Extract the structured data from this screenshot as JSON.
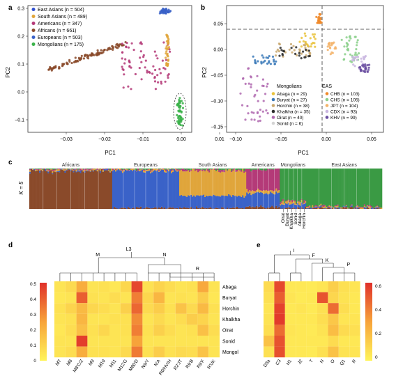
{
  "panels": {
    "a": {
      "label": "a",
      "xlabel": "PC1",
      "ylabel": "PC2",
      "xticks": [
        "−0.03",
        "−0.02",
        "−0.01",
        "0.00",
        "0.01"
      ],
      "yticks": [
        "0.3",
        "0.2",
        "0.1",
        "0.0",
        "−0.1"
      ],
      "legend": [
        {
          "name": "East Asians (n = 504)",
          "color": "#2f4fd0"
        },
        {
          "name": "South Asians (n = 489)",
          "color": "#e0a53a"
        },
        {
          "name": "Americans (n = 347)",
          "color": "#b43a78"
        },
        {
          "name": "Africans (n = 661)",
          "color": "#8a4a2a"
        },
        {
          "name": "Europeans (n = 503)",
          "color": "#3a62c8"
        },
        {
          "name": "Mongolians (n = 175)",
          "color": "#3bb24a"
        }
      ]
    },
    "b": {
      "label": "b",
      "xlabel": "PC1",
      "ylabel": "PC2",
      "xticks": [
        "−0.10",
        "−0.05",
        "0.00",
        "0.05"
      ],
      "yticks": [
        "0.05",
        "0.00",
        "−0.05",
        "−0.10",
        "−0.15"
      ],
      "group_left": "Mongolians",
      "group_right": "EAS",
      "legend_left": [
        {
          "name": "Abaga (n = 29)",
          "color": "#e9c23a"
        },
        {
          "name": "Buryat (n = 27)",
          "color": "#3a79b8"
        },
        {
          "name": "Horchin (n = 38)",
          "color": "#c9a86e"
        },
        {
          "name": "Khalkha (n = 35)",
          "color": "#2b2b2b"
        },
        {
          "name": "Oirat (n = 40)",
          "color": "#b06ab0"
        },
        {
          "name": "Sonid (n = 6)",
          "color": "#d4d4d4"
        }
      ],
      "legend_right": [
        {
          "name": "CHB (n = 103)",
          "color": "#f08a2a"
        },
        {
          "name": "CHS (n = 105)",
          "color": "#8bd08b"
        },
        {
          "name": "JPT (n = 104)",
          "color": "#f3b36a"
        },
        {
          "name": "CDX (n = 93)",
          "color": "#c9b6e0"
        },
        {
          "name": "KHV (n = 99)",
          "color": "#6a4ea0"
        }
      ]
    },
    "c": {
      "label": "c",
      "k_label": "K = 5",
      "groups": [
        "Africans",
        "Europeans",
        "South Asians",
        "Americans",
        "Mongolians",
        "East Asians"
      ],
      "subgroups": [
        "Oirat",
        "Buryat",
        "Khalkha",
        "Sonid",
        "Abaga",
        "Horchin"
      ]
    },
    "d": {
      "label": "d",
      "clade_labels": [
        "M",
        "L3",
        "N",
        "R"
      ],
      "columns": [
        "M7",
        "M8",
        "M8'C/Z",
        "M9",
        "M10",
        "M11",
        "M12'G",
        "M80'D",
        "N9/Y",
        "N'A",
        "R0/HV/H",
        "R2'JT",
        "R9'B",
        "R9'F",
        "R'UK"
      ],
      "rows": [
        "Abaga",
        "Buryat",
        "Horchin",
        "Khalkha",
        "Oirat",
        "Sonid",
        "Mongol"
      ],
      "scale_ticks": [
        "0.5",
        "0.4",
        "0.3",
        "0.2",
        "0.1",
        "0"
      ],
      "vmax": 0.5,
      "values": [
        [
          0.05,
          0.08,
          0.22,
          0.05,
          0.06,
          0.04,
          0.09,
          0.45,
          0.06,
          0.1,
          0.07,
          0.05,
          0.06,
          0.23,
          0.05
        ],
        [
          0.04,
          0.05,
          0.4,
          0.06,
          0.05,
          0.07,
          0.05,
          0.33,
          0.09,
          0.19,
          0.05,
          0.06,
          0.05,
          0.12,
          0.04
        ],
        [
          0.06,
          0.1,
          0.18,
          0.09,
          0.07,
          0.05,
          0.11,
          0.38,
          0.08,
          0.12,
          0.06,
          0.15,
          0.08,
          0.18,
          0.06
        ],
        [
          0.05,
          0.06,
          0.19,
          0.05,
          0.05,
          0.06,
          0.06,
          0.3,
          0.05,
          0.08,
          0.05,
          0.07,
          0.12,
          0.1,
          0.05
        ],
        [
          0.04,
          0.07,
          0.16,
          0.06,
          0.09,
          0.05,
          0.06,
          0.33,
          0.06,
          0.11,
          0.07,
          0.05,
          0.06,
          0.16,
          0.07
        ],
        [
          0.05,
          0.05,
          0.47,
          0.05,
          0.05,
          0.05,
          0.05,
          0.25,
          0.05,
          0.05,
          0.05,
          0.05,
          0.05,
          0.05,
          0.05
        ],
        [
          0.05,
          0.07,
          0.22,
          0.06,
          0.06,
          0.05,
          0.08,
          0.34,
          0.06,
          0.12,
          0.06,
          0.08,
          0.07,
          0.15,
          0.05
        ]
      ]
    },
    "e": {
      "label": "e",
      "clade_labels": [
        "I",
        "F",
        "K",
        "P"
      ],
      "columns": [
        "D3a",
        "C3",
        "H1",
        "J2",
        "T",
        "N",
        "O",
        "Q1",
        "R"
      ],
      "scale_ticks": [
        "0.6",
        "0.4",
        "0.2",
        "0"
      ],
      "vmax": 0.65,
      "values": [
        [
          0.1,
          0.58,
          0.05,
          0.05,
          0.04,
          0.06,
          0.15,
          0.08,
          0.06
        ],
        [
          0.08,
          0.52,
          0.06,
          0.04,
          0.05,
          0.55,
          0.12,
          0.07,
          0.05
        ],
        [
          0.06,
          0.6,
          0.05,
          0.06,
          0.04,
          0.08,
          0.48,
          0.09,
          0.05
        ],
        [
          0.07,
          0.62,
          0.05,
          0.05,
          0.05,
          0.09,
          0.18,
          0.06,
          0.06
        ],
        [
          0.09,
          0.48,
          0.06,
          0.05,
          0.04,
          0.07,
          0.22,
          0.1,
          0.08
        ],
        [
          0.2,
          0.55,
          0.05,
          0.05,
          0.05,
          0.05,
          0.1,
          0.05,
          0.05
        ],
        [
          0.08,
          0.56,
          0.05,
          0.05,
          0.04,
          0.08,
          0.2,
          0.07,
          0.06
        ]
      ]
    }
  },
  "colors": {
    "heat_low": "#fff45a",
    "heat_mid": "#f7a33a",
    "heat_high": "#e0302a"
  }
}
